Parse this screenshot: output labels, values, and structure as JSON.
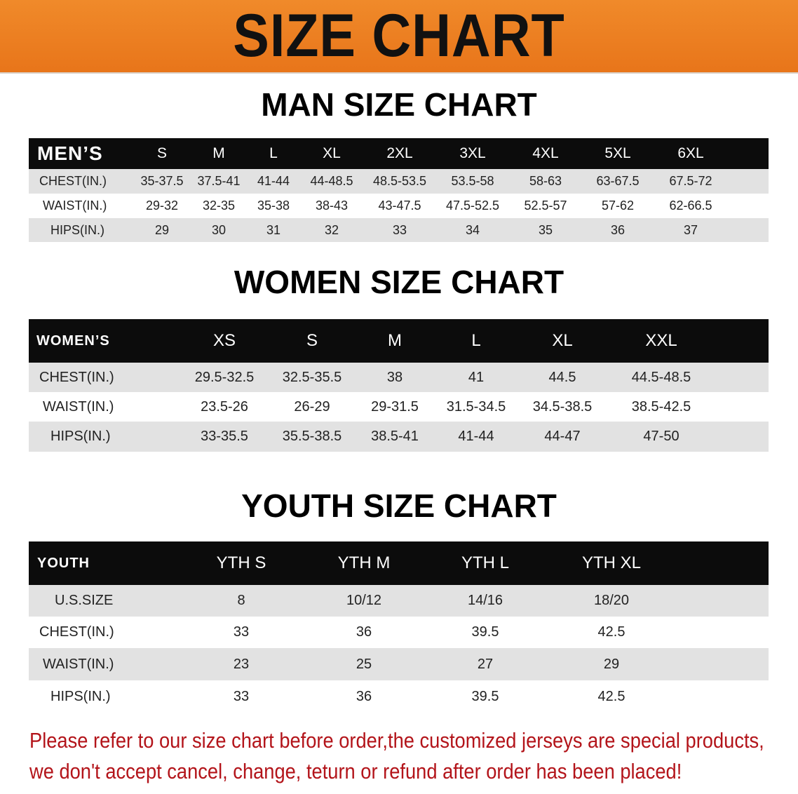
{
  "banner_title": "SIZE CHART",
  "men": {
    "title": "MAN SIZE CHART",
    "header": "MEN’S",
    "sizes": [
      "S",
      "M",
      "L",
      "XL",
      "2XL",
      "3XL",
      "4XL",
      "5XL",
      "6XL"
    ],
    "rows": [
      {
        "label": "CHEST(IN.)",
        "values": [
          "35-37.5",
          "37.5-41",
          "41-44",
          "44-48.5",
          "48.5-53.5",
          "53.5-58",
          "58-63",
          "63-67.5",
          "67.5-72"
        ]
      },
      {
        "label": "WAIST(IN.)",
        "values": [
          "29-32",
          "32-35",
          "35-38",
          "38-43",
          "43-47.5",
          "47.5-52.5",
          "52.5-57",
          "57-62",
          "62-66.5"
        ]
      },
      {
        "label": "HIPS(IN.)",
        "values": [
          "29",
          "30",
          "31",
          "32",
          "33",
          "34",
          "35",
          "36",
          "37"
        ]
      }
    ]
  },
  "women": {
    "title": "WOMEN SIZE CHART",
    "header": "WOMEN’S",
    "sizes": [
      "XS",
      "S",
      "M",
      "L",
      "XL",
      "XXL"
    ],
    "rows": [
      {
        "label": "CHEST(IN.)",
        "values": [
          "29.5-32.5",
          "32.5-35.5",
          "38",
          "41",
          "44.5",
          "44.5-48.5"
        ]
      },
      {
        "label": "WAIST(IN.)",
        "values": [
          "23.5-26",
          "26-29",
          "29-31.5",
          "31.5-34.5",
          "34.5-38.5",
          "38.5-42.5"
        ]
      },
      {
        "label": "HIPS(IN.)",
        "values": [
          "33-35.5",
          "35.5-38.5",
          "38.5-41",
          "41-44",
          "44-47",
          "47-50"
        ]
      }
    ]
  },
  "youth": {
    "title": "YOUTH SIZE CHART",
    "header": "YOUTH",
    "sizes": [
      "YTH S",
      "YTH M",
      "YTH L",
      "YTH XL"
    ],
    "rows": [
      {
        "label": "U.S.SIZE",
        "values": [
          "8",
          "10/12",
          "14/16",
          "18/20"
        ]
      },
      {
        "label": "CHEST(IN.)",
        "values": [
          "33",
          "36",
          "39.5",
          "42.5"
        ]
      },
      {
        "label": "WAIST(IN.)",
        "values": [
          "23",
          "25",
          "27",
          "29"
        ]
      },
      {
        "label": "HIPS(IN.)",
        "values": [
          "33",
          "36",
          "39.5",
          "42.5"
        ]
      }
    ]
  },
  "notice": {
    "line1": "Please refer to our size chart before order,the customized jerseys are special products,",
    "line2": "we don't accept cancel, change, teturn or refund after order has been placed!"
  },
  "colors": {
    "banner": "#ec7f22",
    "header_row": "#0c0c0c",
    "stripe": "#e2e2e2",
    "notice": "#b3141a"
  }
}
